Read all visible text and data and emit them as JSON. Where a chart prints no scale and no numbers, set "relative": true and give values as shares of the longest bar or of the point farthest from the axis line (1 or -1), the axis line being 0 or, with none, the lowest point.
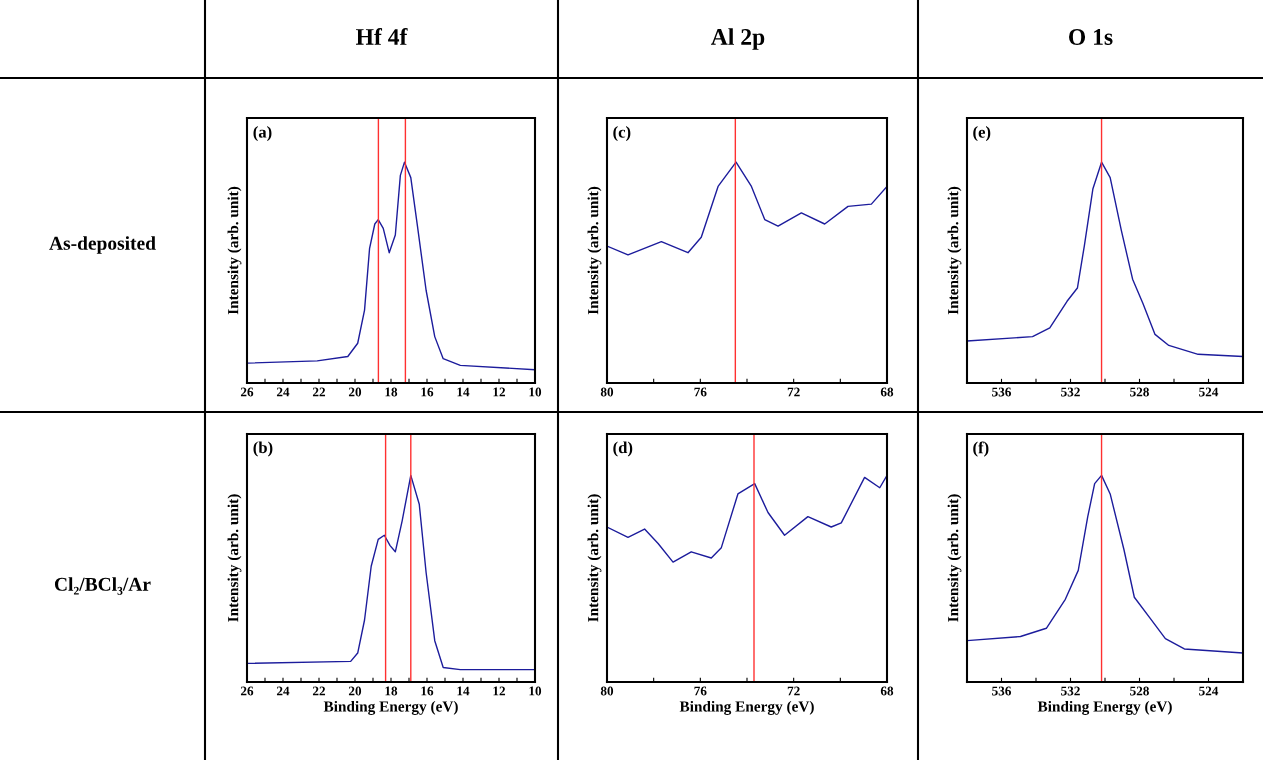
{
  "chart_data": [
    {
      "type": "line",
      "title": "Hf 4f",
      "ylabel": "Intensity (arb. unit)",
      "annotations": [
        "(a)",
        "As-deposited"
      ],
      "relative": true,
      "xlim": [
        26,
        10
      ],
      "xticks": [
        26,
        {
          "value": 25,
          "label": null
        },
        24,
        {
          "value": 23,
          "label": null
        },
        22,
        {
          "value": 21,
          "label": null
        },
        20,
        {
          "value": 19,
          "label": null
        },
        18,
        {
          "value": 17,
          "label": null
        },
        16,
        {
          "value": 15,
          "label": null
        },
        14,
        {
          "value": 13,
          "label": null
        },
        12,
        {
          "value": 11,
          "label": null
        },
        10
      ],
      "tick_labels": "x",
      "grid": false,
      "legend": false,
      "ref_lines": [
        {
          "axis": "x",
          "value": 18.7,
          "color": "#ff3030"
        },
        {
          "axis": "x",
          "value": 17.2,
          "color": "#ff3030"
        }
      ],
      "series": [
        {
          "color": "#1c1c9c",
          "x": [
            26,
            22.1,
            20.4,
            19.85,
            19.47,
            19.19,
            18.9,
            18.71,
            18.43,
            18.1,
            17.76,
            17.48,
            17.25,
            16.9,
            16.53,
            16.05,
            15.57,
            15.1,
            14.15,
            10
          ],
          "values": [
            0.09,
            0.1,
            0.12,
            0.18,
            0.33,
            0.61,
            0.72,
            0.74,
            0.7,
            0.59,
            0.67,
            0.94,
            1.0,
            0.93,
            0.71,
            0.42,
            0.21,
            0.11,
            0.08,
            0.06
          ]
        }
      ]
    },
    {
      "type": "line",
      "title": "Al 2p",
      "ylabel": "Intensity (arb. unit)",
      "annotations": [
        "(c)"
      ],
      "relative": true,
      "xlim": [
        80,
        68
      ],
      "xticks": [
        80,
        {
          "value": 78,
          "label": null
        },
        76,
        {
          "value": 74,
          "label": null
        },
        72,
        {
          "value": 70,
          "label": null
        },
        68
      ],
      "tick_labels": "x",
      "grid": false,
      "legend": false,
      "ref_lines": [
        {
          "axis": "x",
          "value": 74.5,
          "color": "#ff3030"
        }
      ],
      "series": [
        {
          "color": "#1c1c9c",
          "x": [
            80,
            79.1,
            77.67,
            76.53,
            75.96,
            75.24,
            74.47,
            73.81,
            73.24,
            72.67,
            71.67,
            70.67,
            69.67,
            68.67,
            68
          ],
          "values": [
            0.62,
            0.58,
            0.64,
            0.59,
            0.66,
            0.89,
            1.0,
            0.89,
            0.74,
            0.71,
            0.77,
            0.72,
            0.8,
            0.81,
            0.89
          ]
        }
      ]
    },
    {
      "type": "line",
      "title": "O 1s",
      "ylabel": "Intensity (arb. unit)",
      "annotations": [
        "(e)"
      ],
      "relative": true,
      "xlim": [
        538,
        522
      ],
      "xticks": [
        {
          "value": 538,
          "label": null
        },
        536,
        {
          "value": 534,
          "label": null
        },
        532,
        {
          "value": 530,
          "label": null
        },
        528,
        {
          "value": 526,
          "label": null
        },
        524,
        {
          "value": 522,
          "label": null
        }
      ],
      "tick_labels": "x",
      "grid": false,
      "legend": false,
      "ref_lines": [
        {
          "axis": "x",
          "value": 530.2,
          "color": "#ff3030"
        }
      ],
      "series": [
        {
          "color": "#1c1c9c",
          "x": [
            538,
            534.2,
            533.2,
            532.2,
            531.6,
            531.2,
            530.7,
            530.2,
            529.7,
            529.05,
            528.4,
            527.8,
            527.1,
            526.3,
            524.6,
            522
          ],
          "values": [
            0.19,
            0.21,
            0.25,
            0.37,
            0.43,
            0.62,
            0.88,
            1.0,
            0.93,
            0.69,
            0.47,
            0.36,
            0.22,
            0.17,
            0.13,
            0.12
          ]
        }
      ]
    },
    {
      "type": "line",
      "xlabel": "Binding Energy (eV)",
      "ylabel": "Intensity (arb. unit)",
      "annotations": [
        "(b)",
        "Cl₂/BCl₃/Ar"
      ],
      "relative": true,
      "xlim": [
        26,
        10
      ],
      "xticks": [
        26,
        {
          "value": 25,
          "label": null
        },
        24,
        {
          "value": 23,
          "label": null
        },
        22,
        {
          "value": 21,
          "label": null
        },
        20,
        {
          "value": 19,
          "label": null
        },
        18,
        {
          "value": 17,
          "label": null
        },
        16,
        {
          "value": 15,
          "label": null
        },
        14,
        {
          "value": 13,
          "label": null
        },
        12,
        {
          "value": 11,
          "label": null
        },
        10
      ],
      "tick_labels": "x",
      "grid": false,
      "legend": false,
      "ref_lines": [
        {
          "axis": "x",
          "value": 18.3,
          "color": "#ff3030"
        },
        {
          "axis": "x",
          "value": 16.9,
          "color": "#ff3030"
        }
      ],
      "series": [
        {
          "color": "#1c1c9c",
          "x": [
            26,
            20.24,
            19.85,
            19.47,
            19.1,
            18.71,
            18.37,
            18.05,
            17.76,
            17.38,
            16.9,
            16.43,
            16.05,
            15.57,
            15.1,
            14.15,
            10
          ],
          "values": [
            0.09,
            0.1,
            0.14,
            0.3,
            0.56,
            0.69,
            0.71,
            0.66,
            0.63,
            0.78,
            1.0,
            0.86,
            0.53,
            0.2,
            0.07,
            0.06,
            0.06
          ]
        }
      ]
    },
    {
      "type": "line",
      "xlabel": "Binding Energy (eV)",
      "ylabel": "Intensity (arb. unit)",
      "annotations": [
        "(d)"
      ],
      "relative": true,
      "xlim": [
        80,
        68
      ],
      "xticks": [
        80,
        {
          "value": 78,
          "label": null
        },
        76,
        {
          "value": 74,
          "label": null
        },
        72,
        {
          "value": 70,
          "label": null
        },
        68
      ],
      "tick_labels": "x",
      "grid": false,
      "legend": false,
      "ref_lines": [
        {
          "axis": "x",
          "value": 73.7,
          "color": "#ff3030"
        }
      ],
      "series": [
        {
          "color": "#1c1c9c",
          "x": [
            80,
            79.1,
            78.39,
            77.81,
            77.17,
            76.39,
            75.53,
            75.1,
            74.39,
            73.67,
            73.1,
            72.39,
            71.39,
            70.39,
            69.96,
            68.96,
            68.31,
            68
          ],
          "values": [
            0.75,
            0.7,
            0.74,
            0.67,
            0.58,
            0.63,
            0.6,
            0.65,
            0.91,
            0.96,
            0.82,
            0.71,
            0.8,
            0.75,
            0.77,
            0.99,
            0.94,
            1.0
          ]
        }
      ]
    },
    {
      "type": "line",
      "xlabel": "Binding Energy (eV)",
      "ylabel": "Intensity (arb. unit)",
      "annotations": [
        "(f)"
      ],
      "relative": true,
      "xlim": [
        538,
        522
      ],
      "xticks": [
        {
          "value": 538,
          "label": null
        },
        536,
        {
          "value": 534,
          "label": null
        },
        532,
        {
          "value": 530,
          "label": null
        },
        528,
        {
          "value": 526,
          "label": null
        },
        524,
        {
          "value": 522,
          "label": null
        }
      ],
      "tick_labels": "x",
      "grid": false,
      "legend": false,
      "ref_lines": [
        {
          "axis": "x",
          "value": 530.2,
          "color": "#ff3030"
        }
      ],
      "series": [
        {
          "color": "#1c1c9c",
          "x": [
            538,
            534.9,
            533.4,
            532.3,
            531.55,
            531.0,
            530.6,
            530.2,
            529.7,
            528.9,
            528.3,
            527.4,
            526.5,
            525.4,
            522
          ],
          "values": [
            0.2,
            0.22,
            0.26,
            0.4,
            0.54,
            0.8,
            0.96,
            1.0,
            0.91,
            0.64,
            0.41,
            0.31,
            0.21,
            0.16,
            0.14
          ]
        }
      ]
    }
  ]
}
